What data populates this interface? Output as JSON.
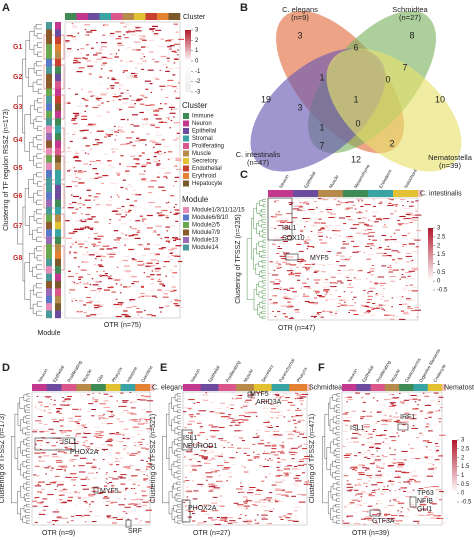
{
  "panel_a": {
    "letter": "A",
    "cluster_title": "Cluster",
    "module_title": "Module",
    "clusters": [
      {
        "name": "Immune",
        "color": "#3f8a55"
      },
      {
        "name": "Neuron",
        "color": "#c2388e"
      },
      {
        "name": "Epithelial",
        "color": "#6b4c9e"
      },
      {
        "name": "Stromal",
        "color": "#3aa3a3"
      },
      {
        "name": "Proliferating",
        "color": "#d9578a"
      },
      {
        "name": "Muscle",
        "color": "#b68a4a"
      },
      {
        "name": "Secretory",
        "color": "#e2c232"
      },
      {
        "name": "Endothelial",
        "color": "#c94030"
      },
      {
        "name": "Erythroid",
        "color": "#e38232"
      },
      {
        "name": "Hepatocyte",
        "color": "#7a5a2a"
      }
    ],
    "modules": [
      {
        "name": "Module1/3/11/12/15",
        "color": "#e58cb8"
      },
      {
        "name": "Module6/8/10",
        "color": "#5a78c8"
      },
      {
        "name": "Module2/5",
        "color": "#6aa84f"
      },
      {
        "name": "Module7/9",
        "color": "#8c5a2a"
      },
      {
        "name": "Module13",
        "color": "#9a6ab8"
      },
      {
        "name": "Module14",
        "color": "#4a9a9a"
      }
    ],
    "colorbar_ticks": [
      3,
      2,
      1,
      0,
      -1,
      -2,
      -3
    ],
    "groups": [
      "G1",
      "G2",
      "G3",
      "G4",
      "G5",
      "G6",
      "G7",
      "G8"
    ],
    "y_label": "Clustering of TF regulon RSSZ (n=173)",
    "x_label": "OTR (n=75)",
    "module_axis_label": "Module"
  },
  "panel_b": {
    "letter": "B",
    "sets": [
      {
        "name": "C. elegans",
        "count": "(n=9)",
        "color": "#e06a3c"
      },
      {
        "name": "Schmidtea",
        "count": "(n=27)",
        "color": "#7bb25f"
      },
      {
        "name": "C. intestinalis",
        "count": "(n=47)",
        "color": "#6656b2"
      },
      {
        "name": "Nematostella",
        "count": "(n=39)",
        "color": "#e6e26a"
      }
    ],
    "regions": [
      3,
      8,
      6,
      7,
      19,
      1,
      0,
      10,
      3,
      1,
      0,
      1,
      7,
      2,
      12
    ]
  },
  "panel_c": {
    "letter": "C",
    "species": "C. intestinalis",
    "categories": [
      {
        "name": "Neuron",
        "color": "#c2388e"
      },
      {
        "name": "Epithelial",
        "color": "#6b4c9e"
      },
      {
        "name": "Muscle",
        "color": "#b68a4a"
      },
      {
        "name": "Mesenchyme",
        "color": "#3f8a55"
      },
      {
        "name": "Endoderm",
        "color": "#3aa3a3"
      },
      {
        "name": "Notochord",
        "color": "#e2c232"
      }
    ],
    "y_label": "Clustering of TFSSZ (n=235)",
    "x_label": "OTR (n=47)",
    "annotations": [
      "ISL1",
      "SOX10",
      "MYF5"
    ],
    "colorbar_ticks": [
      3,
      2.5,
      2,
      1.5,
      1,
      0.5,
      0,
      -0.5
    ]
  },
  "panel_d": {
    "letter": "D",
    "species": "C. elegans",
    "categories": [
      {
        "name": "Neuron",
        "color": "#c2388e"
      },
      {
        "name": "Epithelial",
        "color": "#6b4c9e"
      },
      {
        "name": "Proliferating",
        "color": "#d9578a"
      },
      {
        "name": "Muscle",
        "color": "#b68a4a"
      },
      {
        "name": "Glia",
        "color": "#3f8a55"
      },
      {
        "name": "Pharynx",
        "color": "#e2c232"
      },
      {
        "name": "Intestine",
        "color": "#3aa3a3"
      },
      {
        "name": "Germline",
        "color": "#e38232"
      }
    ],
    "y_label": "Clustering of TFSSZ (n=173)",
    "x_label": "OTR (n=9)",
    "annotations": [
      "ISL1",
      "PHOX2A",
      "MYF5",
      "SRF"
    ]
  },
  "panel_e": {
    "letter": "E",
    "species": "Schmidtea",
    "categories": [
      {
        "name": "Neuron",
        "color": "#c2388e"
      },
      {
        "name": "Epithelial",
        "color": "#6b4c9e"
      },
      {
        "name": "Proliferating",
        "color": "#d9578a"
      },
      {
        "name": "Muscle",
        "color": "#b68a4a"
      },
      {
        "name": "Secretory",
        "color": "#e2c232"
      },
      {
        "name": "Parenchymal",
        "color": "#3aa3a3"
      },
      {
        "name": "Pharynx",
        "color": "#e38232"
      }
    ],
    "y_label": "Clustering of TFSSZ (n=521)",
    "x_label": "OTR (n=27)",
    "annotations": [
      "MYF5",
      "ARID3A",
      "ISL1",
      "NEUROD1",
      "PHOX2A"
    ]
  },
  "panel_f": {
    "letter": "F",
    "species": "Nematostella",
    "categories": [
      {
        "name": "Neuron",
        "color": "#c2388e"
      },
      {
        "name": "Epithelial",
        "color": "#6b4c9e"
      },
      {
        "name": "Proliferating",
        "color": "#d9578a"
      },
      {
        "name": "Muscle",
        "color": "#b68a4a"
      },
      {
        "name": "Gastrodermis",
        "color": "#3f8a55"
      },
      {
        "name": "Digestive filaments",
        "color": "#3aa3a3"
      },
      {
        "name": "Cnidocyte",
        "color": "#e2c232"
      }
    ],
    "y_label": "Clustering of TFSSZ (n=471)",
    "x_label": "OTR (n=39)",
    "annotations": [
      "IRF1",
      "ISL1",
      "TP63",
      "NFIB",
      "GLI1",
      "GTF3A"
    ],
    "colorbar_ticks": [
      3,
      2.5,
      2,
      1.5,
      1,
      0.5,
      0,
      -0.5
    ]
  }
}
